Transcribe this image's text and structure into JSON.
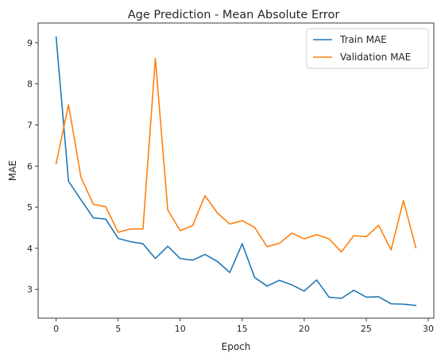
{
  "chart_data": {
    "type": "line",
    "title": "Age Prediction - Mean Absolute Error",
    "xlabel": "Epoch",
    "ylabel": "MAE",
    "xlim": [
      -1.45,
      30.45
    ],
    "ylim": [
      2.3,
      9.48
    ],
    "xticks": [
      0,
      5,
      10,
      15,
      20,
      25,
      30
    ],
    "yticks": [
      3,
      4,
      5,
      6,
      7,
      8,
      9
    ],
    "grid": false,
    "legend_position": "top-right",
    "x": [
      0,
      1,
      2,
      3,
      4,
      5,
      6,
      7,
      8,
      9,
      10,
      11,
      12,
      13,
      14,
      15,
      16,
      17,
      18,
      19,
      20,
      21,
      22,
      23,
      24,
      25,
      26,
      27,
      28,
      29
    ],
    "series": [
      {
        "name": "Train MAE",
        "color": "#1f77b4",
        "values": [
          9.14,
          5.63,
          5.18,
          4.74,
          4.71,
          4.24,
          4.16,
          4.11,
          3.75,
          4.05,
          3.75,
          3.71,
          3.85,
          3.68,
          3.41,
          4.11,
          3.29,
          3.08,
          3.22,
          3.11,
          2.96,
          3.23,
          2.81,
          2.78,
          2.98,
          2.81,
          2.82,
          2.65,
          2.64,
          2.61
        ]
      },
      {
        "name": "Validation MAE",
        "color": "#ff7f0e",
        "values": [
          6.06,
          7.49,
          5.73,
          5.07,
          5.01,
          4.39,
          4.47,
          4.47,
          8.62,
          4.93,
          4.43,
          4.55,
          5.28,
          4.86,
          4.59,
          4.67,
          4.51,
          4.04,
          4.12,
          4.37,
          4.23,
          4.33,
          4.23,
          3.91,
          4.31,
          4.28,
          4.56,
          3.96,
          5.16,
          4.01
        ]
      }
    ]
  }
}
